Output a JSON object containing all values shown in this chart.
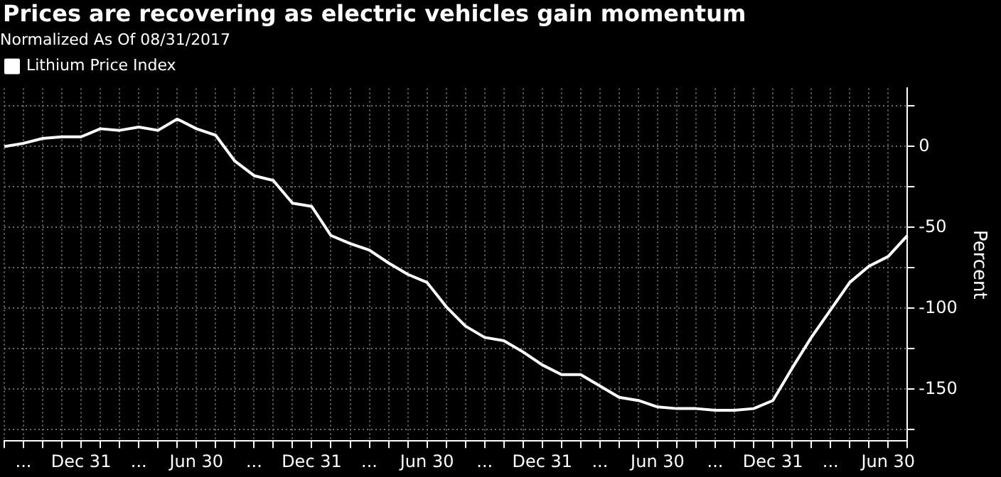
{
  "chart_data": {
    "type": "line",
    "title": "Prices are recovering as electric vehicles gain momentum",
    "subtitle": "Normalized As Of 08/31/2017",
    "ylabel": "Percent",
    "categories": [
      null,
      "...",
      null,
      null,
      "Dec 31",
      null,
      null,
      "...",
      null,
      null,
      "Jun 30",
      null,
      null,
      "...",
      null,
      null,
      "Dec 31",
      null,
      null,
      "...",
      null,
      null,
      "Jun 30",
      null,
      null,
      "...",
      null,
      null,
      "Dec 31",
      null,
      null,
      "...",
      null,
      null,
      "Jun 30",
      null,
      null,
      "...",
      null,
      null,
      "Dec 31",
      null,
      null,
      "...",
      null,
      null,
      "Jun 30",
      null
    ],
    "series": [
      {
        "name": "Lithium Price Index",
        "color": "#ffffff",
        "values": [
          0,
          2,
          5,
          6,
          6,
          11,
          10,
          12,
          10,
          17,
          11,
          7,
          -9,
          -18,
          -21,
          -35,
          -37,
          -55,
          -60,
          -64,
          -72,
          -79,
          -84,
          -99,
          -111,
          -118,
          -120,
          -127,
          -135,
          -141,
          -141,
          -148,
          -155,
          -157,
          -161,
          -162,
          -162,
          -163,
          -163,
          -162,
          -157,
          -137,
          -118,
          -101,
          -84,
          -74,
          -68,
          -55
        ]
      }
    ],
    "ylim": [
      -182,
      36
    ],
    "yticks": [
      {
        "value": -175,
        "label": null
      },
      -150,
      {
        "value": -125,
        "label": null
      },
      -100,
      {
        "value": -75,
        "label": null
      },
      -50,
      {
        "value": -25,
        "label": null
      },
      0,
      {
        "value": 25,
        "label": null
      }
    ],
    "grid": true,
    "legend": "top left",
    "marker": "none",
    "line_style": "solid"
  }
}
